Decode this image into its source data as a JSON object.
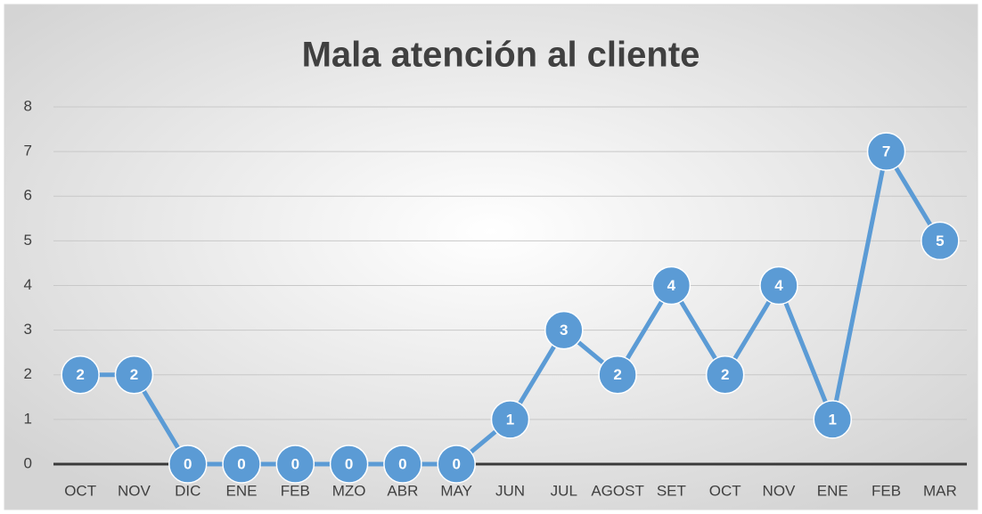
{
  "chart_data": {
    "type": "line",
    "title": "Mala atención al cliente",
    "categories": [
      "OCT",
      "NOV",
      "DIC",
      "ENE",
      "FEB",
      "MZO",
      "ABR",
      "MAY",
      "JUN",
      "JUL",
      "AGOST",
      "SET",
      "OCT",
      "NOV",
      "ENE",
      "FEB",
      "MAR"
    ],
    "values": [
      2,
      2,
      0,
      0,
      0,
      0,
      0,
      0,
      1,
      3,
      2,
      4,
      2,
      4,
      1,
      7,
      5
    ],
    "color": "#5b9bd5",
    "ylim": [
      0,
      8
    ],
    "yticks": [
      0,
      1,
      2,
      3,
      4,
      5,
      6,
      7,
      8
    ],
    "grid": true
  }
}
